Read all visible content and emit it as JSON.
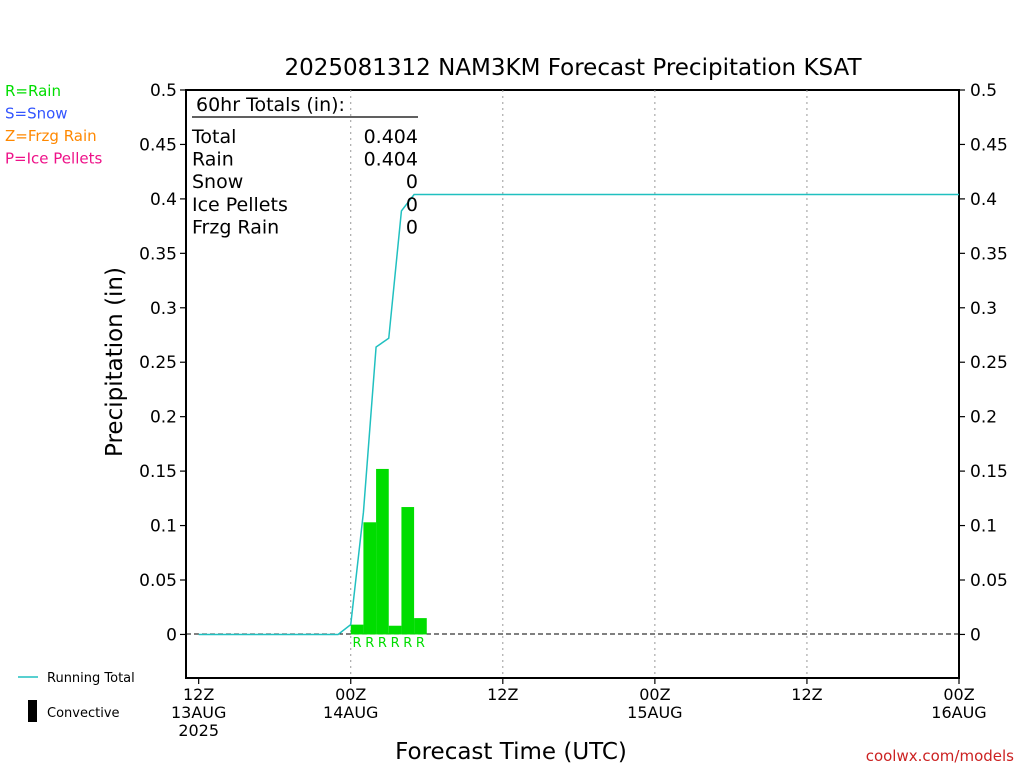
{
  "chart_data": {
    "type": "bar",
    "title": "2025081312 NAM3KM Forecast Precipitation KSAT",
    "xlabel": "Forecast Time (UTC)",
    "ylabel": "Precipitation (in)",
    "ylim": [
      -0.04,
      0.5
    ],
    "yticks": [
      0,
      0.05,
      0.1,
      0.15,
      0.2,
      0.25,
      0.3,
      0.35,
      0.4,
      0.45,
      0.5
    ],
    "ytick_labels": [
      "0",
      "0.05",
      "0.1",
      "0.15",
      "0.2",
      "0.25",
      "0.3",
      "0.35",
      "0.4",
      "0.45",
      "0.5"
    ],
    "xlim_hours": [
      -1,
      60
    ],
    "grid": "vertical dotted at 12-hour ticks",
    "xticks": [
      {
        "hour": 0,
        "lines": [
          "12Z",
          "13AUG",
          "2025"
        ]
      },
      {
        "hour": 12,
        "lines": [
          "00Z",
          "14AUG"
        ]
      },
      {
        "hour": 24,
        "lines": [
          "12Z"
        ]
      },
      {
        "hour": 36,
        "lines": [
          "00Z",
          "15AUG"
        ]
      },
      {
        "hour": 48,
        "lines": [
          "12Z"
        ]
      },
      {
        "hour": 60,
        "lines": [
          "00Z",
          "16AUG"
        ]
      }
    ],
    "series": [
      {
        "name": "Rain",
        "color": "#00dd00",
        "bar_width_hours": 1,
        "x_hours": [
          12,
          13,
          14,
          15,
          16,
          17
        ],
        "values": [
          0.009,
          0.103,
          0.152,
          0.008,
          0.117,
          0.015
        ],
        "type_codes": [
          "R",
          "R",
          "R",
          "R",
          "R",
          "R"
        ]
      },
      {
        "name": "Running Total",
        "type": "line",
        "color": "#20c0c0",
        "x_hours": [
          0,
          11,
          12,
          13,
          14,
          15,
          16,
          17,
          60
        ],
        "values": [
          0,
          0,
          0.009,
          0.112,
          0.264,
          0.272,
          0.389,
          0.404,
          0.404
        ]
      }
    ],
    "totals_box": {
      "title": "60hr Totals (in):",
      "rows": [
        {
          "label": "Total",
          "value": "0.404"
        },
        {
          "label": "Rain",
          "value": "0.404"
        },
        {
          "label": "Snow",
          "value": "0"
        },
        {
          "label": "Ice Pellets",
          "value": "0"
        },
        {
          "label": "Frzg Rain",
          "value": "0"
        }
      ]
    },
    "type_legend": [
      {
        "text": "R=Rain",
        "color": "#00dd00"
      },
      {
        "text": "S=Snow",
        "color": "#3355ff"
      },
      {
        "text": "Z=Frzg Rain",
        "color": "#ff8800"
      },
      {
        "text": "P=Ice Pellets",
        "color": "#ee1188"
      }
    ],
    "line_legend": [
      {
        "text": "Running Total",
        "color": "#20c0c0",
        "symbol": "line"
      },
      {
        "text": "Convective",
        "color": "#000000",
        "symbol": "bar"
      }
    ],
    "credit": "coolwx.com/models"
  }
}
